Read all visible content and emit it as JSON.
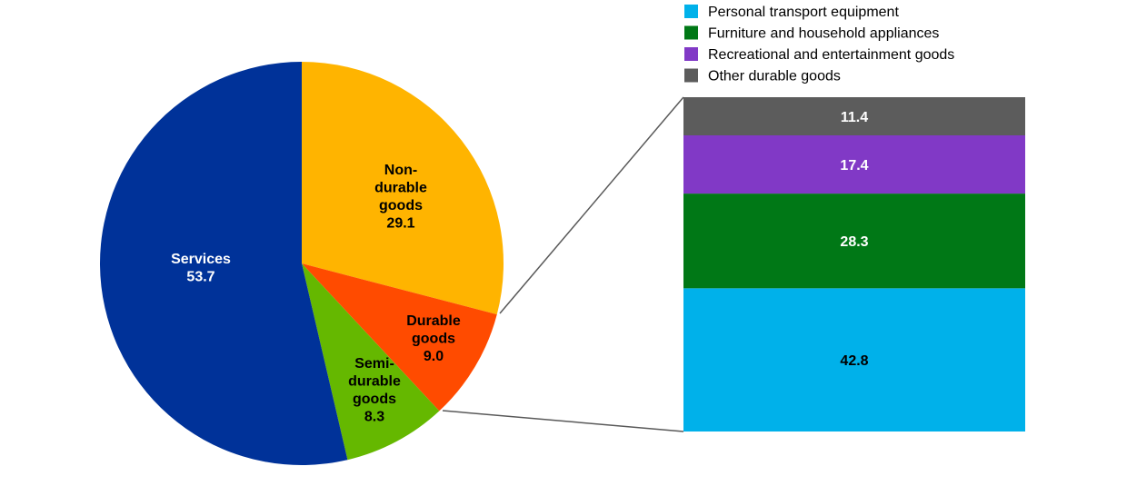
{
  "chart_data": [
    {
      "type": "pie",
      "title": "",
      "start": "top, clockwise",
      "slices": [
        {
          "name": "Non-durable goods",
          "label_lines": [
            "Non-",
            "durable",
            "goods"
          ],
          "value": 29.1,
          "value_label": "29.1",
          "color": "#FFB400",
          "text_color": "#000000"
        },
        {
          "name": "Durable goods",
          "label_lines": [
            "Durable",
            "goods"
          ],
          "value": 9.0,
          "value_label": "9.0",
          "color": "#FF4B00",
          "text_color": "#000000"
        },
        {
          "name": "Semi-durable goods",
          "label_lines": [
            "Semi-",
            "durable",
            "goods"
          ],
          "value": 8.3,
          "value_label": "8.3",
          "color": "#65B800",
          "text_color": "#000000"
        },
        {
          "name": "Services",
          "label_lines": [
            "Services"
          ],
          "value": 53.7,
          "value_label": "53.7",
          "color": "#003299",
          "text_color": "#FFFFFF"
        }
      ]
    },
    {
      "type": "bar",
      "stacked": true,
      "breakdown_of": "Durable goods",
      "legend_position": "top",
      "series": [
        {
          "name": "Personal transport equipment",
          "value": 42.8,
          "value_label": "42.8",
          "color": "#00B1EA",
          "text_color": "#000000"
        },
        {
          "name": "Furniture and household appliances",
          "value": 28.3,
          "value_label": "28.3",
          "color": "#007816",
          "text_color": "#FFFFFF"
        },
        {
          "name": "Recreational and entertainment goods",
          "value": 17.4,
          "value_label": "17.4",
          "color": "#8139C6",
          "text_color": "#FFFFFF"
        },
        {
          "name": "Other durable goods",
          "value": 11.4,
          "value_label": "11.4",
          "color": "#5C5C5C",
          "text_color": "#FFFFFF"
        }
      ]
    }
  ]
}
